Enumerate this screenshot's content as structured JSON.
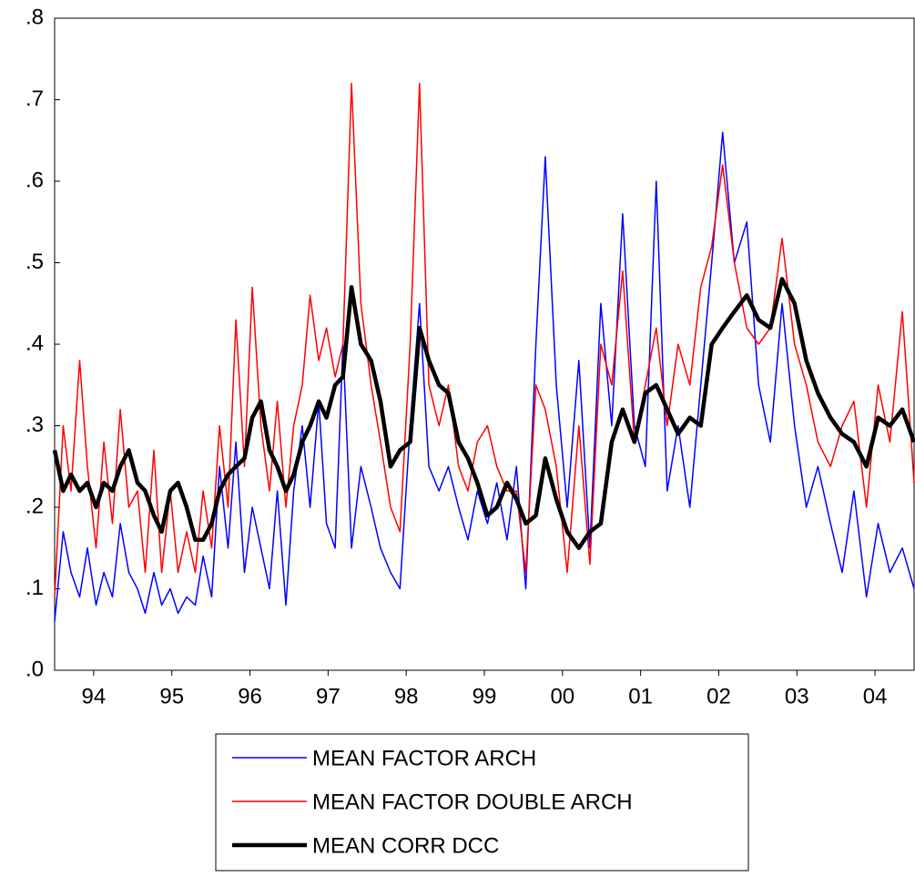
{
  "chart_data": {
    "type": "line",
    "x": [
      1994.0,
      1994.11,
      1994.21,
      1994.32,
      1994.42,
      1994.53,
      1994.63,
      1994.74,
      1994.84,
      1994.95,
      1995.06,
      1995.16,
      1995.27,
      1995.37,
      1995.48,
      1995.58,
      1995.69,
      1995.8,
      1995.9,
      1996.01,
      1996.11,
      1996.22,
      1996.32,
      1996.43,
      1996.53,
      1996.64,
      1996.75,
      1996.85,
      1996.96,
      1997.06,
      1997.17,
      1997.27,
      1997.38,
      1997.48,
      1997.59,
      1997.69,
      1997.8,
      1997.92,
      1998.05,
      1998.17,
      1998.3,
      1998.42,
      1998.55,
      1998.67,
      1998.79,
      1998.92,
      1999.04,
      1999.17,
      1999.29,
      1999.41,
      1999.54,
      1999.66,
      1999.79,
      1999.91,
      2000.03,
      2000.16,
      2000.28,
      2000.42,
      2000.56,
      2000.71,
      2000.85,
      2000.99,
      2001.13,
      2001.27,
      2001.42,
      2001.56,
      2001.7,
      2001.84,
      2001.98,
      2002.13,
      2002.27,
      2002.41,
      2002.55,
      2002.7,
      2002.86,
      2003.01,
      2003.16,
      2003.31,
      2003.47,
      2003.62,
      2003.77,
      2003.93,
      2004.08,
      2004.23,
      2004.39,
      2004.54,
      2004.69,
      2004.85,
      2005.0
    ],
    "series": [
      {
        "name": "MEAN FACTOR ARCH",
        "color": "#0000ff",
        "width": 1.5,
        "values": [
          0.06,
          0.17,
          0.12,
          0.09,
          0.15,
          0.08,
          0.12,
          0.09,
          0.18,
          0.12,
          0.1,
          0.07,
          0.12,
          0.08,
          0.1,
          0.07,
          0.09,
          0.08,
          0.14,
          0.09,
          0.25,
          0.15,
          0.28,
          0.12,
          0.2,
          0.15,
          0.1,
          0.22,
          0.08,
          0.22,
          0.3,
          0.2,
          0.33,
          0.18,
          0.15,
          0.4,
          0.15,
          0.25,
          0.2,
          0.15,
          0.12,
          0.1,
          0.3,
          0.45,
          0.25,
          0.22,
          0.25,
          0.2,
          0.16,
          0.22,
          0.18,
          0.23,
          0.16,
          0.25,
          0.1,
          0.4,
          0.63,
          0.35,
          0.2,
          0.38,
          0.15,
          0.45,
          0.3,
          0.56,
          0.3,
          0.25,
          0.6,
          0.22,
          0.3,
          0.2,
          0.35,
          0.5,
          0.66,
          0.5,
          0.55,
          0.35,
          0.28,
          0.45,
          0.3,
          0.2,
          0.25,
          0.18,
          0.12,
          0.22,
          0.09,
          0.18,
          0.12,
          0.15,
          0.1
        ]
      },
      {
        "name": "MEAN FACTOR DOUBLE ARCH",
        "color": "#ff0000",
        "width": 1.5,
        "values": [
          0.09,
          0.3,
          0.22,
          0.38,
          0.25,
          0.15,
          0.28,
          0.18,
          0.32,
          0.2,
          0.22,
          0.12,
          0.27,
          0.12,
          0.22,
          0.12,
          0.17,
          0.12,
          0.22,
          0.15,
          0.3,
          0.2,
          0.43,
          0.25,
          0.47,
          0.3,
          0.22,
          0.33,
          0.2,
          0.3,
          0.35,
          0.46,
          0.38,
          0.42,
          0.36,
          0.4,
          0.72,
          0.45,
          0.35,
          0.28,
          0.2,
          0.17,
          0.4,
          0.72,
          0.35,
          0.3,
          0.35,
          0.25,
          0.22,
          0.28,
          0.3,
          0.25,
          0.22,
          0.22,
          0.12,
          0.35,
          0.32,
          0.25,
          0.12,
          0.3,
          0.13,
          0.4,
          0.35,
          0.49,
          0.28,
          0.35,
          0.42,
          0.3,
          0.4,
          0.35,
          0.47,
          0.52,
          0.62,
          0.5,
          0.42,
          0.4,
          0.42,
          0.53,
          0.4,
          0.35,
          0.28,
          0.25,
          0.3,
          0.33,
          0.2,
          0.35,
          0.28,
          0.44,
          0.23
        ]
      },
      {
        "name": "MEAN CORR DCC",
        "color": "#000000",
        "width": 4.5,
        "values": [
          0.27,
          0.22,
          0.24,
          0.22,
          0.23,
          0.2,
          0.23,
          0.22,
          0.25,
          0.27,
          0.23,
          0.22,
          0.19,
          0.17,
          0.22,
          0.23,
          0.2,
          0.16,
          0.16,
          0.18,
          0.22,
          0.24,
          0.25,
          0.26,
          0.31,
          0.33,
          0.27,
          0.25,
          0.22,
          0.24,
          0.28,
          0.3,
          0.33,
          0.31,
          0.35,
          0.36,
          0.47,
          0.4,
          0.38,
          0.33,
          0.25,
          0.27,
          0.28,
          0.42,
          0.38,
          0.35,
          0.34,
          0.28,
          0.26,
          0.23,
          0.19,
          0.2,
          0.23,
          0.21,
          0.18,
          0.19,
          0.26,
          0.21,
          0.17,
          0.15,
          0.17,
          0.18,
          0.28,
          0.32,
          0.28,
          0.34,
          0.35,
          0.32,
          0.29,
          0.31,
          0.3,
          0.4,
          0.42,
          0.44,
          0.46,
          0.43,
          0.42,
          0.48,
          0.45,
          0.38,
          0.34,
          0.31,
          0.29,
          0.28,
          0.25,
          0.31,
          0.3,
          0.32,
          0.28
        ]
      }
    ],
    "xlim": [
      1994,
      2005
    ],
    "xticks": [
      {
        "value": 1994.5,
        "label": "94"
      },
      {
        "value": 1995.5,
        "label": "95"
      },
      {
        "value": 1996.5,
        "label": "96"
      },
      {
        "value": 1997.5,
        "label": "97"
      },
      {
        "value": 1998.5,
        "label": "98"
      },
      {
        "value": 1999.5,
        "label": "99"
      },
      {
        "value": 2000.5,
        "label": "00"
      },
      {
        "value": 2001.5,
        "label": "01"
      },
      {
        "value": 2002.5,
        "label": "02"
      },
      {
        "value": 2003.5,
        "label": "03"
      },
      {
        "value": 2004.5,
        "label": "04"
      }
    ],
    "ylim": [
      0,
      0.8
    ],
    "yticks": [
      {
        "value": 0,
        "label": ".0"
      },
      {
        "value": 0.1,
        "label": ".1"
      },
      {
        "value": 0.2,
        "label": ".2"
      },
      {
        "value": 0.3,
        "label": ".3"
      },
      {
        "value": 0.4,
        "label": ".4"
      },
      {
        "value": 0.5,
        "label": ".5"
      },
      {
        "value": 0.6,
        "label": ".6"
      },
      {
        "value": 0.7,
        "label": ".7"
      },
      {
        "value": 0.8,
        "label": ".8"
      }
    ],
    "legend": "bottom"
  }
}
